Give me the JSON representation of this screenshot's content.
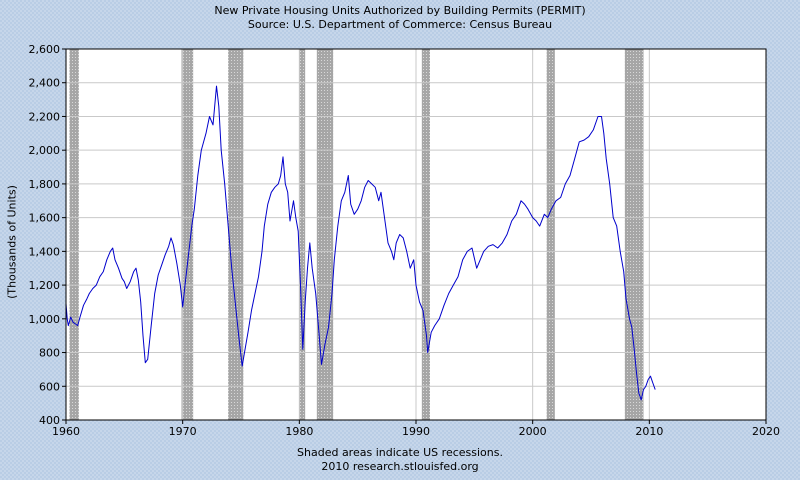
{
  "header": {
    "title": "New Private Housing Units Authorized by Building Permits (PERMIT)",
    "subtitle": "Source: U.S. Department of Commerce: Census Bureau"
  },
  "footer": {
    "note": "Shaded areas indicate US recessions.",
    "credit": "2010 research.stlouisfed.org"
  },
  "colors": {
    "line": "#0000cc",
    "recession": "#a6a6a6",
    "plot_bg": "#ffffff",
    "grid": "#c9c9c9"
  },
  "chart_data": {
    "type": "line",
    "title": "New Private Housing Units Authorized by Building Permits (PERMIT)",
    "ylabel": "(Thousands of Units)",
    "xlabel": "",
    "xlim": [
      1960,
      2020
    ],
    "ylim": [
      400,
      2600
    ],
    "x_ticks": [
      "1960",
      "1970",
      "1980",
      "1990",
      "2000",
      "2010",
      "2020"
    ],
    "y_ticks": [
      "400",
      "600",
      "800",
      "1,000",
      "1,200",
      "1,400",
      "1,600",
      "1,800",
      "2,000",
      "2,200",
      "2,400",
      "2,600"
    ],
    "grid": true,
    "recessions": [
      [
        1960.3,
        1961.1
      ],
      [
        1969.9,
        1970.9
      ],
      [
        1973.9,
        1975.2
      ],
      [
        1980.0,
        1980.5
      ],
      [
        1981.5,
        1982.9
      ],
      [
        1990.5,
        1991.2
      ],
      [
        2001.2,
        2001.9
      ],
      [
        2007.9,
        2009.5
      ]
    ],
    "series": [
      {
        "points": [
          [
            1960.0,
            1090
          ],
          [
            1960.1,
            1000
          ],
          [
            1960.2,
            960
          ],
          [
            1960.4,
            1010
          ],
          [
            1960.6,
            980
          ],
          [
            1960.8,
            970
          ],
          [
            1961.0,
            960
          ],
          [
            1961.2,
            1010
          ],
          [
            1961.5,
            1080
          ],
          [
            1961.8,
            1120
          ],
          [
            1962.0,
            1150
          ],
          [
            1962.3,
            1180
          ],
          [
            1962.6,
            1200
          ],
          [
            1962.9,
            1250
          ],
          [
            1963.2,
            1280
          ],
          [
            1963.5,
            1350
          ],
          [
            1963.8,
            1400
          ],
          [
            1964.0,
            1420
          ],
          [
            1964.2,
            1350
          ],
          [
            1964.5,
            1300
          ],
          [
            1964.8,
            1240
          ],
          [
            1965.0,
            1220
          ],
          [
            1965.2,
            1180
          ],
          [
            1965.5,
            1220
          ],
          [
            1965.8,
            1280
          ],
          [
            1966.0,
            1300
          ],
          [
            1966.2,
            1230
          ],
          [
            1966.4,
            1100
          ],
          [
            1966.6,
            900
          ],
          [
            1966.8,
            740
          ],
          [
            1967.0,
            760
          ],
          [
            1967.3,
            960
          ],
          [
            1967.6,
            1150
          ],
          [
            1967.9,
            1260
          ],
          [
            1968.2,
            1320
          ],
          [
            1968.5,
            1380
          ],
          [
            1968.8,
            1430
          ],
          [
            1969.0,
            1480
          ],
          [
            1969.2,
            1440
          ],
          [
            1969.5,
            1330
          ],
          [
            1969.8,
            1200
          ],
          [
            1970.0,
            1070
          ],
          [
            1970.2,
            1200
          ],
          [
            1970.5,
            1380
          ],
          [
            1970.8,
            1560
          ],
          [
            1971.0,
            1650
          ],
          [
            1971.3,
            1850
          ],
          [
            1971.6,
            2000
          ],
          [
            1972.0,
            2100
          ],
          [
            1972.3,
            2200
          ],
          [
            1972.6,
            2150
          ],
          [
            1972.9,
            2380
          ],
          [
            1973.1,
            2260
          ],
          [
            1973.3,
            2000
          ],
          [
            1973.6,
            1800
          ],
          [
            1973.9,
            1550
          ],
          [
            1974.2,
            1300
          ],
          [
            1974.5,
            1100
          ],
          [
            1974.8,
            900
          ],
          [
            1975.0,
            780
          ],
          [
            1975.1,
            720
          ],
          [
            1975.3,
            800
          ],
          [
            1975.6,
            920
          ],
          [
            1975.9,
            1050
          ],
          [
            1976.2,
            1150
          ],
          [
            1976.5,
            1250
          ],
          [
            1976.8,
            1400
          ],
          [
            1977.0,
            1550
          ],
          [
            1977.3,
            1680
          ],
          [
            1977.6,
            1750
          ],
          [
            1977.9,
            1780
          ],
          [
            1978.2,
            1800
          ],
          [
            1978.4,
            1850
          ],
          [
            1978.6,
            1960
          ],
          [
            1978.8,
            1800
          ],
          [
            1979.0,
            1750
          ],
          [
            1979.2,
            1580
          ],
          [
            1979.5,
            1700
          ],
          [
            1979.7,
            1600
          ],
          [
            1979.9,
            1520
          ],
          [
            1980.1,
            1200
          ],
          [
            1980.3,
            820
          ],
          [
            1980.5,
            1100
          ],
          [
            1980.7,
            1300
          ],
          [
            1980.9,
            1450
          ],
          [
            1981.1,
            1300
          ],
          [
            1981.4,
            1150
          ],
          [
            1981.7,
            900
          ],
          [
            1981.9,
            730
          ],
          [
            1982.2,
            850
          ],
          [
            1982.5,
            950
          ],
          [
            1982.8,
            1150
          ],
          [
            1983.0,
            1350
          ],
          [
            1983.3,
            1550
          ],
          [
            1983.6,
            1700
          ],
          [
            1983.9,
            1750
          ],
          [
            1984.2,
            1850
          ],
          [
            1984.4,
            1680
          ],
          [
            1984.7,
            1620
          ],
          [
            1985.0,
            1650
          ],
          [
            1985.3,
            1700
          ],
          [
            1985.6,
            1780
          ],
          [
            1985.9,
            1820
          ],
          [
            1986.2,
            1800
          ],
          [
            1986.5,
            1780
          ],
          [
            1986.8,
            1700
          ],
          [
            1987.0,
            1750
          ],
          [
            1987.3,
            1600
          ],
          [
            1987.6,
            1450
          ],
          [
            1987.9,
            1400
          ],
          [
            1988.1,
            1350
          ],
          [
            1988.3,
            1450
          ],
          [
            1988.6,
            1500
          ],
          [
            1988.9,
            1480
          ],
          [
            1989.2,
            1400
          ],
          [
            1989.5,
            1300
          ],
          [
            1989.8,
            1350
          ],
          [
            1990.0,
            1200
          ],
          [
            1990.3,
            1100
          ],
          [
            1990.6,
            1050
          ],
          [
            1990.9,
            900
          ],
          [
            1991.0,
            800
          ],
          [
            1991.3,
            920
          ],
          [
            1991.6,
            960
          ],
          [
            1992.0,
            1000
          ],
          [
            1992.4,
            1080
          ],
          [
            1992.8,
            1150
          ],
          [
            1993.2,
            1200
          ],
          [
            1993.6,
            1250
          ],
          [
            1994.0,
            1350
          ],
          [
            1994.4,
            1400
          ],
          [
            1994.8,
            1420
          ],
          [
            1995.2,
            1300
          ],
          [
            1995.5,
            1350
          ],
          [
            1995.8,
            1400
          ],
          [
            1996.2,
            1430
          ],
          [
            1996.6,
            1440
          ],
          [
            1997.0,
            1420
          ],
          [
            1997.4,
            1450
          ],
          [
            1997.8,
            1500
          ],
          [
            1998.2,
            1580
          ],
          [
            1998.6,
            1620
          ],
          [
            1999.0,
            1700
          ],
          [
            1999.3,
            1680
          ],
          [
            1999.6,
            1650
          ],
          [
            2000.0,
            1600
          ],
          [
            2000.3,
            1580
          ],
          [
            2000.6,
            1550
          ],
          [
            2001.0,
            1620
          ],
          [
            2001.3,
            1600
          ],
          [
            2001.6,
            1650
          ],
          [
            2002.0,
            1700
          ],
          [
            2002.4,
            1720
          ],
          [
            2002.8,
            1800
          ],
          [
            2003.2,
            1850
          ],
          [
            2003.6,
            1950
          ],
          [
            2004.0,
            2050
          ],
          [
            2004.4,
            2060
          ],
          [
            2004.8,
            2080
          ],
          [
            2005.2,
            2120
          ],
          [
            2005.6,
            2200
          ],
          [
            2005.9,
            2200
          ],
          [
            2006.1,
            2100
          ],
          [
            2006.3,
            1950
          ],
          [
            2006.6,
            1800
          ],
          [
            2006.9,
            1600
          ],
          [
            2007.2,
            1550
          ],
          [
            2007.5,
            1400
          ],
          [
            2007.8,
            1280
          ],
          [
            2008.0,
            1120
          ],
          [
            2008.3,
            1000
          ],
          [
            2008.5,
            950
          ],
          [
            2008.7,
            820
          ],
          [
            2008.9,
            680
          ],
          [
            2009.1,
            560
          ],
          [
            2009.3,
            520
          ],
          [
            2009.5,
            580
          ],
          [
            2009.7,
            600
          ],
          [
            2009.9,
            640
          ],
          [
            2010.1,
            660
          ],
          [
            2010.3,
            620
          ],
          [
            2010.5,
            580
          ]
        ]
      }
    ]
  }
}
